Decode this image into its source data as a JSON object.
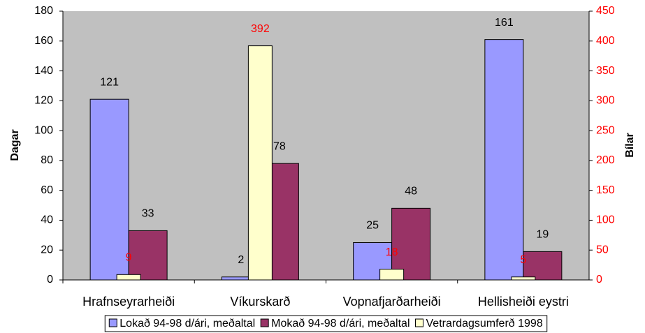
{
  "chart_data": {
    "type": "bar",
    "categories": [
      "Hrafnseyrarheiði",
      "Víkurskarð",
      "Vopnafjarðarheiði",
      "Hellisheiði eystri"
    ],
    "series": [
      {
        "name": "Lokað 94-98 d/ári, meðaltal",
        "color": "#9999ff",
        "values": [
          121,
          2,
          25,
          161
        ]
      },
      {
        "name": "Mokað 94-98 d/ári, meðaltal",
        "color": "#993366",
        "values": [
          33,
          78,
          48,
          19
        ]
      },
      {
        "name": "Vetrardagsumferð 1998",
        "color": "#ffffcc",
        "values": [
          9,
          392,
          18,
          5
        ],
        "axis": "y2"
      }
    ],
    "ylabel": "Dagar",
    "y2label": "Bílar",
    "ylim": [
      0,
      180
    ],
    "yticks": [
      0,
      20,
      40,
      60,
      80,
      100,
      120,
      140,
      160,
      180
    ],
    "y2lim": [
      0,
      450
    ],
    "y2ticks": [
      0,
      50,
      100,
      150,
      200,
      250,
      300,
      350,
      400,
      450
    ],
    "y2color": "#ff0000",
    "plot_background": "#c0c0c0",
    "legend": "bottom"
  }
}
